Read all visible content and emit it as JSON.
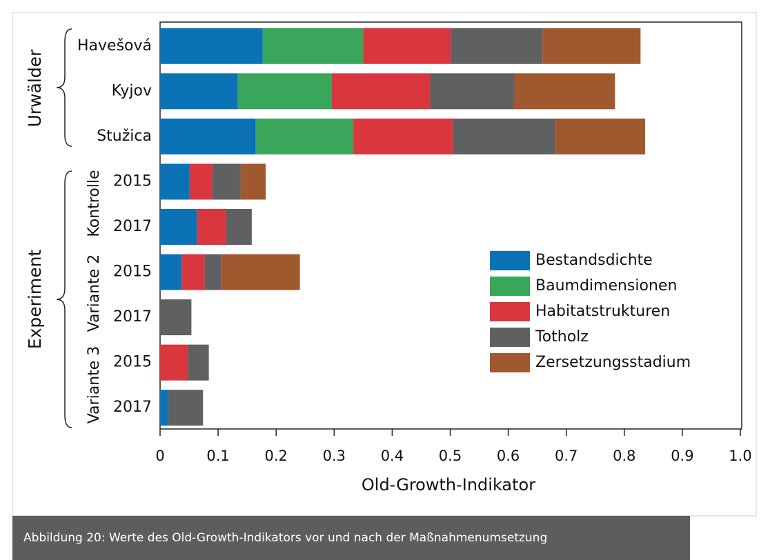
{
  "chart_data": {
    "type": "stacked-barh",
    "categories": [
      "Havešová",
      "Kyjov",
      "Stužica",
      "2015",
      "2017",
      "2015",
      "2017",
      "2015",
      "2017"
    ],
    "group_labels": [
      "Urwälder",
      "Experiment"
    ],
    "subgroup_labels": [
      "Kontrolle",
      "Variante 2",
      "Variante 3"
    ],
    "series": [
      {
        "name": "Bestandsdichte",
        "color": "#0b72b5",
        "values": [
          0.177,
          0.134,
          0.165,
          0.051,
          0.064,
          0.037,
          0,
          0,
          0.014
        ]
      },
      {
        "name": "Baumdimensionen",
        "color": "#3aa65c",
        "values": [
          0.173,
          0.162,
          0.168,
          0,
          0,
          0,
          0,
          0,
          0
        ]
      },
      {
        "name": "Habitatstrukturen",
        "color": "#d9363e",
        "values": [
          0.151,
          0.169,
          0.172,
          0.039,
          0.05,
          0.04,
          0,
          0.048,
          0
        ]
      },
      {
        "name": "Totholz",
        "color": "#5f6062",
        "values": [
          0.158,
          0.145,
          0.176,
          0.049,
          0.044,
          0.028,
          0.054,
          0.036,
          0.06
        ]
      },
      {
        "name": "Zersetzungsstadium",
        "color": "#a0582f",
        "values": [
          0.169,
          0.174,
          0.155,
          0.043,
          0,
          0.136,
          0,
          0,
          0
        ]
      }
    ],
    "xlabel": "Old-Growth-Indikator",
    "xlim": [
      0,
      1
    ],
    "xticks": [
      0,
      0.1,
      0.2,
      0.3,
      0.4,
      0.5,
      0.6,
      0.7,
      0.8,
      0.9,
      {
        "value": 1,
        "label": "1.0"
      }
    ],
    "legend": "right"
  },
  "caption": "Abbildung 20: Werte des Old-Growth-Indikators vor und nach der Maßnahmenumsetzung"
}
